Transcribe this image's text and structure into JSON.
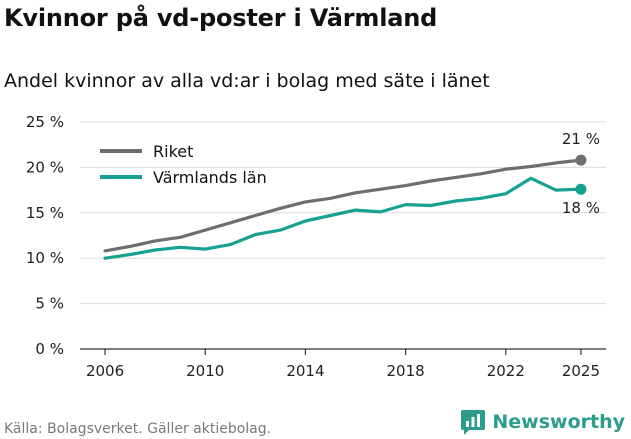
{
  "header": {
    "title": "Kvinnor på vd-poster i Värmland",
    "subtitle": "Andel kvinnor av alla vd:ar i bolag med säte i länet"
  },
  "footer": {
    "source": "Källa: Bolagsverket. Gäller aktiebolag.",
    "brand": "Newsworthy"
  },
  "colors": {
    "riket": "#6d6d72",
    "varmland": "#17a190",
    "grid": "#dcdcdc",
    "axis": "#333333",
    "brand": "#2c9d8c"
  },
  "chart_data": {
    "type": "line",
    "title": "Kvinnor på vd-poster i Värmland",
    "subtitle": "Andel kvinnor av alla vd:ar i bolag med säte i länet",
    "xlabel": "",
    "ylabel": "",
    "xlim": [
      2005,
      2026
    ],
    "ylim": [
      0,
      25
    ],
    "x_ticks": [
      2006,
      2010,
      2014,
      2018,
      2022,
      2025
    ],
    "y_ticks": [
      {
        "value": 0,
        "label": "0 %"
      },
      {
        "value": 5,
        "label": "5 %"
      },
      {
        "value": 10,
        "label": "10 %"
      },
      {
        "value": 15,
        "label": "15 %"
      },
      {
        "value": 20,
        "label": "20 %"
      },
      {
        "value": 25,
        "label": "25 %"
      }
    ],
    "grid": true,
    "legend_position": "top-left",
    "x": [
      2006,
      2007,
      2008,
      2009,
      2010,
      2011,
      2012,
      2013,
      2014,
      2015,
      2016,
      2017,
      2018,
      2019,
      2020,
      2021,
      2022,
      2023,
      2024,
      2025
    ],
    "series": [
      {
        "name": "Riket",
        "color_key": "riket",
        "values": [
          10.8,
          11.3,
          11.9,
          12.3,
          13.1,
          13.9,
          14.7,
          15.5,
          16.2,
          16.6,
          17.2,
          17.6,
          18.0,
          18.5,
          18.9,
          19.3,
          19.8,
          20.1,
          20.5,
          20.8
        ],
        "end_label": "21 %",
        "end_label_position": "above"
      },
      {
        "name": "Värmlands län",
        "color_key": "varmland",
        "values": [
          10.0,
          10.4,
          10.9,
          11.2,
          11.0,
          11.5,
          12.6,
          13.1,
          14.1,
          14.7,
          15.3,
          15.1,
          15.9,
          15.8,
          16.3,
          16.6,
          17.1,
          18.8,
          17.5,
          17.6
        ],
        "end_label": "18 %",
        "end_label_position": "below"
      }
    ]
  }
}
